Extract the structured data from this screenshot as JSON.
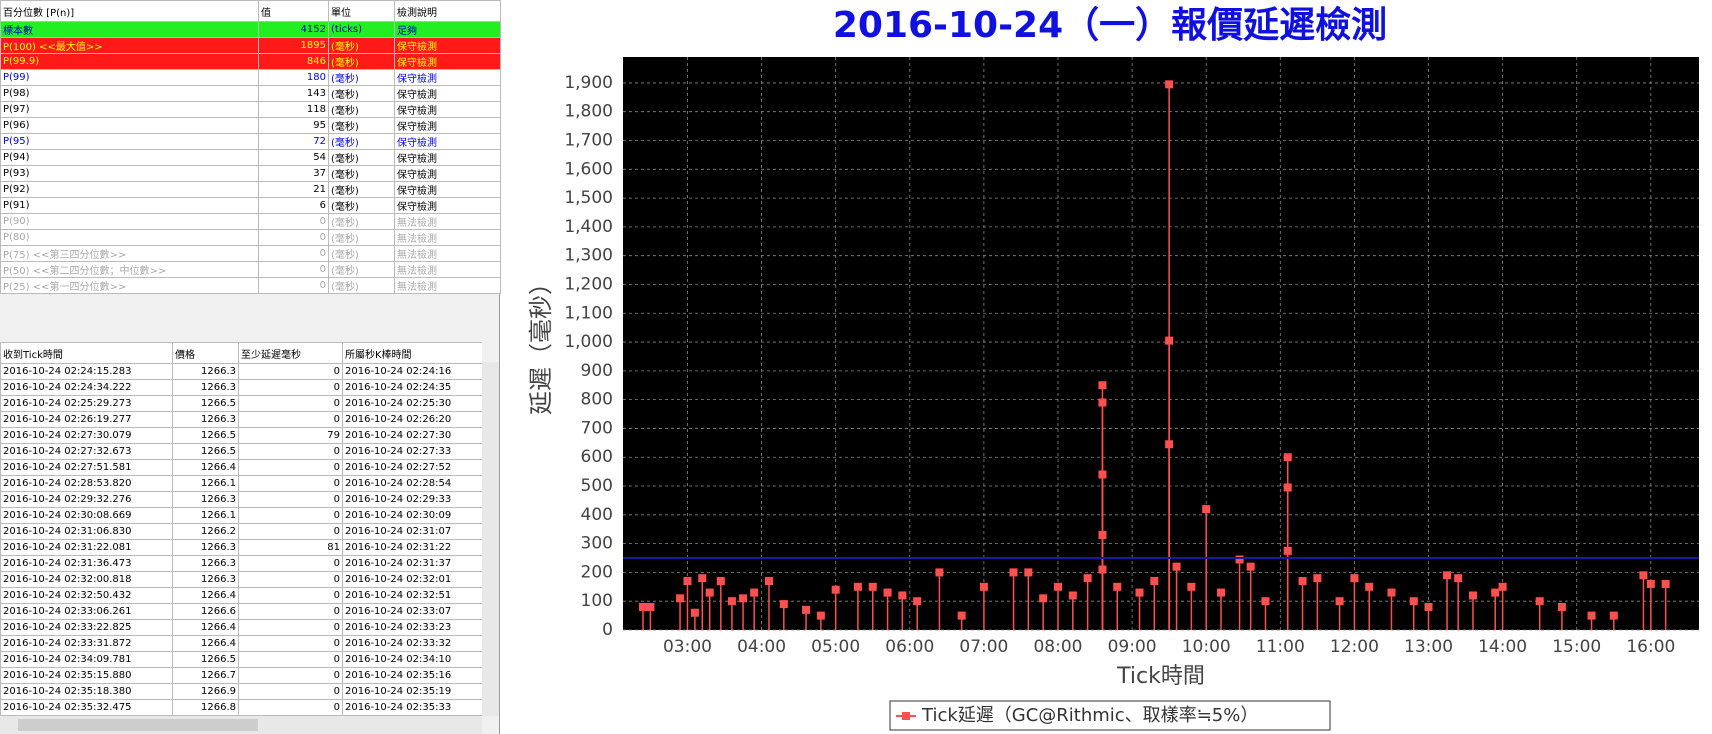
{
  "percentile_table": {
    "header": [
      "百分位數 [P(n)]",
      "值",
      "單位",
      "檢測說明"
    ],
    "rows": [
      [
        "標本數",
        4152,
        "(ticks)",
        "足夠"
      ],
      [
        "P(100)  <<最大值>>",
        1895,
        "(毫秒)",
        "保守檢測"
      ],
      [
        "P(99.9)",
        846,
        "(毫秒)",
        "保守檢測"
      ],
      [
        "P(99)",
        180,
        "(毫秒)",
        "保守檢測"
      ],
      [
        "P(98)",
        143,
        "(毫秒)",
        "保守檢測"
      ],
      [
        "P(97)",
        118,
        "(毫秒)",
        "保守檢測"
      ],
      [
        "P(96)",
        95,
        "(毫秒)",
        "保守檢測"
      ],
      [
        "P(95)",
        72,
        "(毫秒)",
        "保守檢測"
      ],
      [
        "P(94)",
        54,
        "(毫秒)",
        "保守檢測"
      ],
      [
        "P(93)",
        37,
        "(毫秒)",
        "保守檢測"
      ],
      [
        "P(92)",
        21,
        "(毫秒)",
        "保守檢測"
      ],
      [
        "P(91)",
        6,
        "(毫秒)",
        "保守檢測"
      ],
      [
        "P(90)",
        0,
        "(毫秒)",
        "無法檢測"
      ],
      [
        "P(80)",
        0,
        "(毫秒)",
        "無法檢測"
      ],
      [
        "P(75)  <<第三四分位數>>",
        0,
        "(毫秒)",
        "無法檢測"
      ],
      [
        "P(50)  <<第二四分位數；中位數>>",
        0,
        "(毫秒)",
        "無法檢測"
      ],
      [
        "P(25)  <<第一四分位數>>",
        0,
        "(毫秒)",
        "無法檢測"
      ]
    ]
  },
  "tick_table": {
    "header": [
      "收到Tick時間",
      "價格",
      "至少延遲毫秒",
      "所屬秒K棒時間"
    ],
    "rows": [
      [
        "2016-10-24 02:24:15.283",
        "1266.3",
        0,
        "2016-10-24 02:24:16"
      ],
      [
        "2016-10-24 02:24:34.222",
        "1266.3",
        0,
        "2016-10-24 02:24:35"
      ],
      [
        "2016-10-24 02:25:29.273",
        "1266.5",
        0,
        "2016-10-24 02:25:30"
      ],
      [
        "2016-10-24 02:26:19.277",
        "1266.3",
        0,
        "2016-10-24 02:26:20"
      ],
      [
        "2016-10-24 02:27:30.079",
        "1266.5",
        79,
        "2016-10-24 02:27:30"
      ],
      [
        "2016-10-24 02:27:32.673",
        "1266.5",
        0,
        "2016-10-24 02:27:33"
      ],
      [
        "2016-10-24 02:27:51.581",
        "1266.4",
        0,
        "2016-10-24 02:27:52"
      ],
      [
        "2016-10-24 02:28:53.820",
        "1266.1",
        0,
        "2016-10-24 02:28:54"
      ],
      [
        "2016-10-24 02:29:32.276",
        "1266.3",
        0,
        "2016-10-24 02:29:33"
      ],
      [
        "2016-10-24 02:30:08.669",
        "1266.1",
        0,
        "2016-10-24 02:30:09"
      ],
      [
        "2016-10-24 02:31:06.830",
        "1266.2",
        0,
        "2016-10-24 02:31:07"
      ],
      [
        "2016-10-24 02:31:22.081",
        "1266.3",
        81,
        "2016-10-24 02:31:22"
      ],
      [
        "2016-10-24 02:31:36.473",
        "1266.3",
        0,
        "2016-10-24 02:31:37"
      ],
      [
        "2016-10-24 02:32:00.818",
        "1266.3",
        0,
        "2016-10-24 02:32:01"
      ],
      [
        "2016-10-24 02:32:50.432",
        "1266.4",
        0,
        "2016-10-24 02:32:51"
      ],
      [
        "2016-10-24 02:33:06.261",
        "1266.6",
        0,
        "2016-10-24 02:33:07"
      ],
      [
        "2016-10-24 02:33:22.825",
        "1266.4",
        0,
        "2016-10-24 02:33:23"
      ],
      [
        "2016-10-24 02:33:31.872",
        "1266.4",
        0,
        "2016-10-24 02:33:32"
      ],
      [
        "2016-10-24 02:34:09.781",
        "1266.5",
        0,
        "2016-10-24 02:34:10"
      ],
      [
        "2016-10-24 02:35:15.880",
        "1266.7",
        0,
        "2016-10-24 02:35:16"
      ],
      [
        "2016-10-24 02:35:18.380",
        "1266.9",
        0,
        "2016-10-24 02:35:19"
      ],
      [
        "2016-10-24 02:35:32.475",
        "1266.8",
        0,
        "2016-10-24 02:35:33"
      ]
    ]
  },
  "chart_data": {
    "type": "scatter",
    "title": "2016-10-24（一）報價延遲檢測",
    "x_label": "Tick時間",
    "y_label": "延遲（毫秒）",
    "x": [
      2.4,
      2.5,
      2.9,
      3.0,
      3.1,
      3.2,
      3.3,
      3.45,
      3.6,
      3.75,
      3.9,
      4.1,
      4.3,
      4.6,
      4.8,
      5.0,
      5.3,
      5.5,
      5.7,
      5.9,
      6.1,
      6.4,
      6.7,
      7.0,
      7.4,
      7.6,
      7.8,
      8.0,
      8.2,
      8.4,
      8.6,
      8.6,
      8.6,
      8.6,
      8.6,
      8.8,
      9.1,
      9.3,
      9.5,
      9.5,
      9.5,
      9.6,
      9.8,
      10.0,
      10.2,
      10.45,
      10.6,
      10.8,
      11.1,
      11.1,
      11.1,
      11.3,
      11.5,
      11.8,
      12.0,
      12.2,
      12.5,
      12.8,
      13.0,
      13.25,
      13.4,
      13.6,
      13.9,
      14.0,
      14.5,
      14.8,
      15.2,
      15.5,
      15.9,
      16.0,
      16.2
    ],
    "series": [
      {
        "name": "Tick延遲（GC@Rithmic、取樣率≒5%）",
        "color": "#ff5050",
        "values": [
          80,
          80,
          110,
          170,
          60,
          180,
          130,
          170,
          100,
          110,
          130,
          170,
          90,
          70,
          50,
          140,
          150,
          150,
          130,
          120,
          100,
          200,
          50,
          150,
          200,
          200,
          110,
          150,
          120,
          180,
          850,
          790,
          540,
          330,
          210,
          150,
          130,
          170,
          1895,
          1005,
          645,
          220,
          150,
          420,
          130,
          245,
          220,
          100,
          600,
          495,
          275,
          170,
          180,
          100,
          180,
          150,
          130,
          100,
          80,
          190,
          180,
          120,
          130,
          150,
          100,
          80,
          50,
          50,
          190,
          160,
          160
        ]
      }
    ],
    "reference_line": {
      "value": 250,
      "color": "#1a1aa0"
    },
    "xlim": [
      2.13,
      16.65
    ],
    "ylim": [
      0,
      1990
    ],
    "xticks": [
      {
        "value": 3,
        "label": "03:00"
      },
      {
        "value": 4,
        "label": "04:00"
      },
      {
        "value": 5,
        "label": "05:00"
      },
      {
        "value": 6,
        "label": "06:00"
      },
      {
        "value": 7,
        "label": "07:00"
      },
      {
        "value": 8,
        "label": "08:00"
      },
      {
        "value": 9,
        "label": "09:00"
      },
      {
        "value": 10,
        "label": "10:00"
      },
      {
        "value": 11,
        "label": "11:00"
      },
      {
        "value": 12,
        "label": "12:00"
      },
      {
        "value": 13,
        "label": "13:00"
      },
      {
        "value": 14,
        "label": "14:00"
      },
      {
        "value": 15,
        "label": "15:00"
      },
      {
        "value": 16,
        "label": "16:00"
      }
    ],
    "yticks": [
      0,
      100,
      200,
      300,
      400,
      500,
      600,
      700,
      800,
      900,
      {
        "value": 1000,
        "label": "1,000"
      },
      {
        "value": 1100,
        "label": "1,100"
      },
      {
        "value": 1200,
        "label": "1,200"
      },
      {
        "value": 1300,
        "label": "1,300"
      },
      {
        "value": 1400,
        "label": "1,400"
      },
      {
        "value": 1500,
        "label": "1,500"
      },
      {
        "value": 1600,
        "label": "1,600"
      },
      {
        "value": 1700,
        "label": "1,700"
      },
      {
        "value": 1800,
        "label": "1,800"
      },
      {
        "value": 1900,
        "label": "1,900"
      }
    ],
    "grid": true
  }
}
